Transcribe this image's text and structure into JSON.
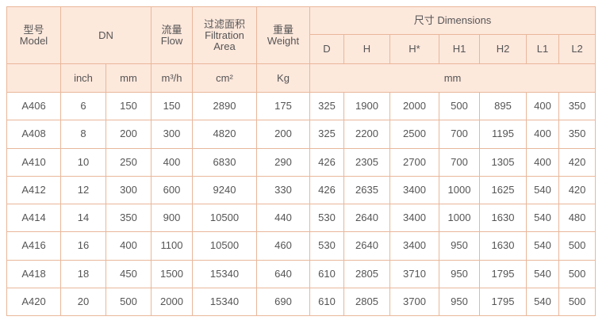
{
  "table": {
    "header": {
      "model": [
        "型号",
        "Model"
      ],
      "dn": "DN",
      "flow": [
        "流量",
        "Flow"
      ],
      "area": [
        "过滤面积",
        "Filtration",
        "Area"
      ],
      "weight": [
        "重量",
        "Weight"
      ],
      "dimensions": "尺寸 Dimensions",
      "dims": [
        "D",
        "H",
        "H*",
        "H1",
        "H2",
        "L1",
        "L2"
      ],
      "units": [
        "inch",
        "mm",
        "m³/h",
        "cm²",
        "Kg",
        "mm"
      ]
    },
    "rows": [
      [
        "A406",
        6,
        150,
        150,
        2890,
        175,
        325,
        1900,
        2000,
        500,
        895,
        400,
        350
      ],
      [
        "A408",
        8,
        200,
        300,
        4820,
        200,
        325,
        2200,
        2500,
        700,
        1195,
        400,
        350
      ],
      [
        "A410",
        10,
        250,
        400,
        6830,
        290,
        426,
        2305,
        2700,
        700,
        1305,
        400,
        420
      ],
      [
        "A412",
        12,
        300,
        600,
        9240,
        330,
        426,
        2635,
        3400,
        1000,
        1625,
        540,
        420
      ],
      [
        "A414",
        14,
        350,
        900,
        10500,
        440,
        530,
        2640,
        3400,
        1000,
        1630,
        540,
        480
      ],
      [
        "A416",
        16,
        400,
        1100,
        10500,
        460,
        530,
        2640,
        3400,
        950,
        1630,
        540,
        500
      ],
      [
        "A418",
        18,
        450,
        1500,
        15340,
        640,
        610,
        2805,
        3710,
        950,
        1795,
        540,
        500
      ],
      [
        "A420",
        20,
        500,
        2000,
        15340,
        690,
        610,
        2805,
        3700,
        950,
        1795,
        540,
        500
      ]
    ]
  }
}
